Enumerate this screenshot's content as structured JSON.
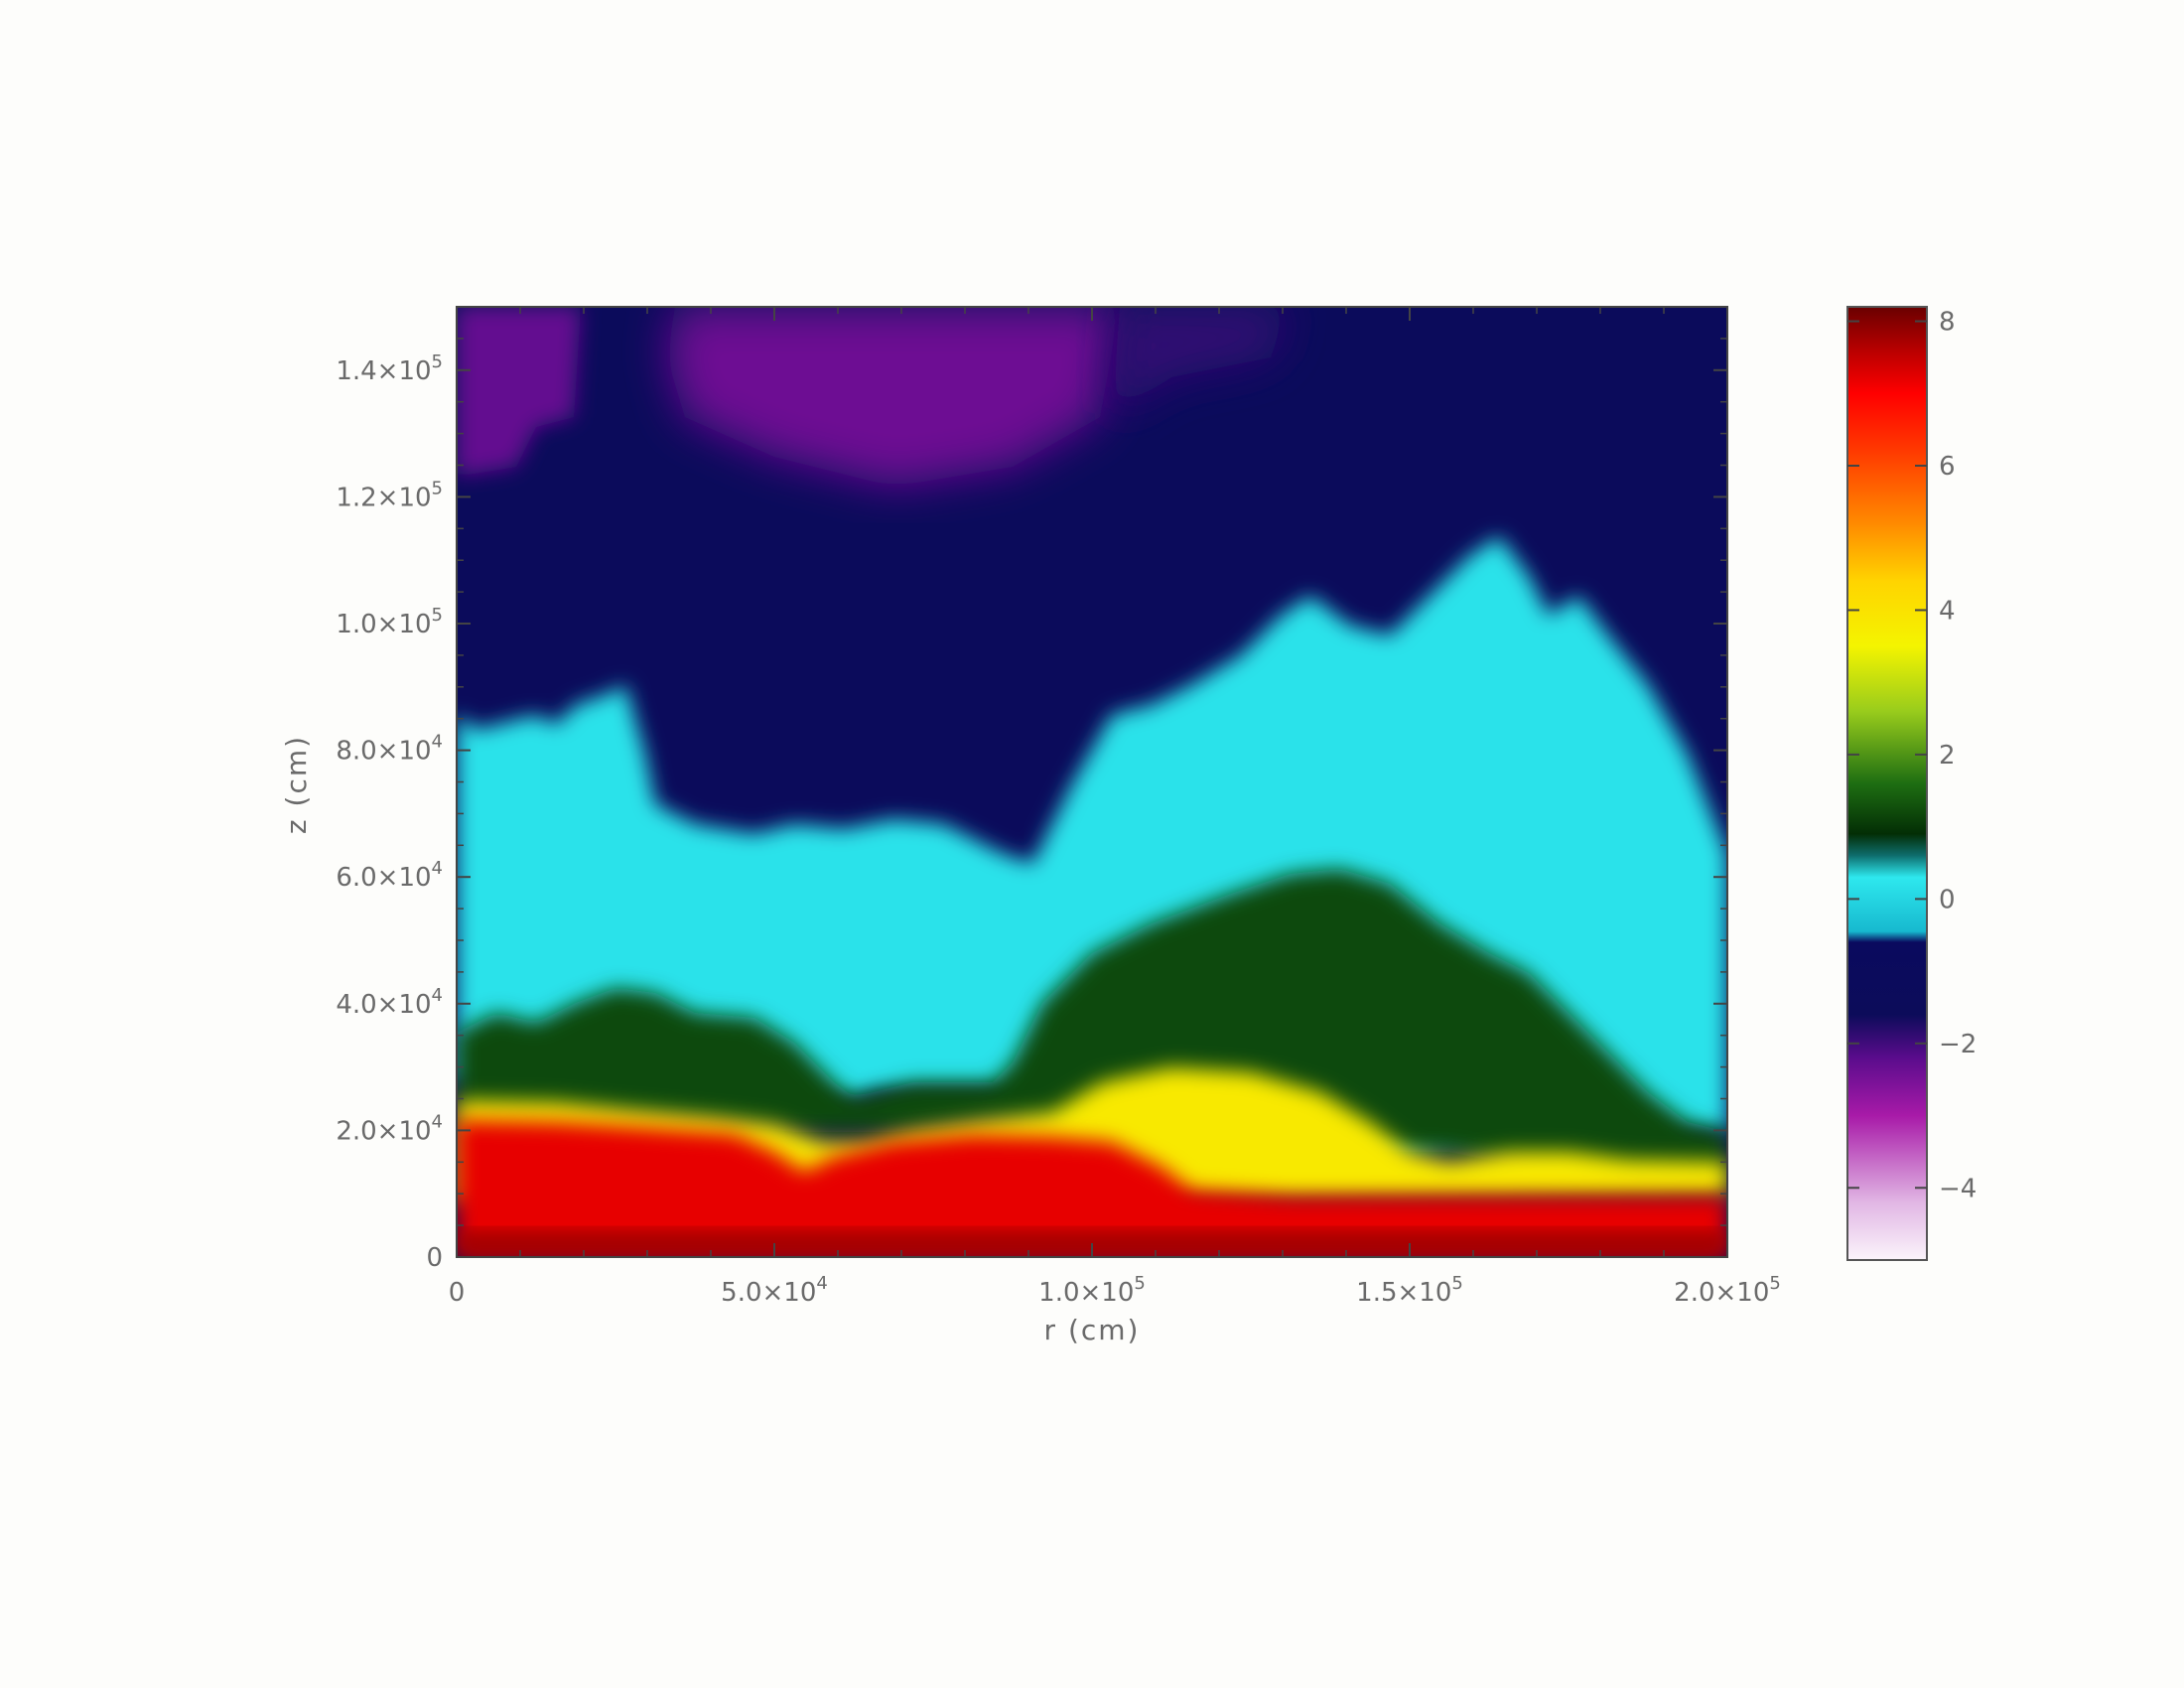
{
  "chart_data": {
    "type": "heatmap",
    "title": "",
    "xlabel": "r (cm)",
    "ylabel": "z (cm)",
    "xlim": [
      0,
      200000
    ],
    "ylim": [
      0,
      150000
    ],
    "x_ticks": [
      {
        "value": 0,
        "mantissa": "0",
        "exp": ""
      },
      {
        "value": 50000,
        "mantissa": "5.0×10",
        "exp": "4"
      },
      {
        "value": 100000,
        "mantissa": "1.0×10",
        "exp": "5"
      },
      {
        "value": 150000,
        "mantissa": "1.5×10",
        "exp": "5"
      },
      {
        "value": 200000,
        "mantissa": "2.0×10",
        "exp": "5"
      }
    ],
    "y_ticks": [
      {
        "value": 0,
        "mantissa": "0",
        "exp": ""
      },
      {
        "value": 20000,
        "mantissa": "2.0×10",
        "exp": "4"
      },
      {
        "value": 40000,
        "mantissa": "4.0×10",
        "exp": "4"
      },
      {
        "value": 60000,
        "mantissa": "6.0×10",
        "exp": "4"
      },
      {
        "value": 80000,
        "mantissa": "8.0×10",
        "exp": "4"
      },
      {
        "value": 100000,
        "mantissa": "1.0×10",
        "exp": "5"
      },
      {
        "value": 120000,
        "mantissa": "1.2×10",
        "exp": "5"
      },
      {
        "value": 140000,
        "mantissa": "1.4×10",
        "exp": "5"
      }
    ],
    "colorbar": {
      "range": [
        -5,
        8.2
      ],
      "ticks": [
        {
          "value": 8,
          "label": "8"
        },
        {
          "value": 6,
          "label": "6"
        },
        {
          "value": 4,
          "label": "4"
        },
        {
          "value": 2,
          "label": "2"
        },
        {
          "value": 0,
          "label": "0"
        },
        {
          "value": -2,
          "label": "−2"
        },
        {
          "value": -4,
          "label": "−4"
        }
      ],
      "stops": [
        {
          "value": -5.0,
          "color": "#fbf4fb"
        },
        {
          "value": -4.2,
          "color": "#e1b6e4"
        },
        {
          "value": -3.0,
          "color": "#a81aa8"
        },
        {
          "value": -2.2,
          "color": "#5a0c8c"
        },
        {
          "value": -1.6,
          "color": "#0c0c5a"
        },
        {
          "value": -0.6,
          "color": "#0a0a5e"
        },
        {
          "value": -0.45,
          "color": "#17b9cf"
        },
        {
          "value": 0.3,
          "color": "#2ee8ee"
        },
        {
          "value": 0.6,
          "color": "#0e6e6e"
        },
        {
          "value": 0.9,
          "color": "#032e05"
        },
        {
          "value": 1.6,
          "color": "#1e6e12"
        },
        {
          "value": 2.6,
          "color": "#99cc1c"
        },
        {
          "value": 3.5,
          "color": "#f4f400"
        },
        {
          "value": 4.4,
          "color": "#ffd400"
        },
        {
          "value": 5.2,
          "color": "#ff8a00"
        },
        {
          "value": 6.2,
          "color": "#ff3a00"
        },
        {
          "value": 7.0,
          "color": "#ff0000"
        },
        {
          "value": 7.6,
          "color": "#b80000"
        },
        {
          "value": 8.2,
          "color": "#6a0000"
        }
      ]
    },
    "field_regions": [
      {
        "name": "upper-left-plume",
        "value": -2.3
      },
      {
        "name": "central-cap",
        "value": -2.4
      },
      {
        "name": "upper-right-plume",
        "value": -1.9
      },
      {
        "name": "ambient",
        "value": -1.3
      },
      {
        "name": "cyan-mixing-layer",
        "value": 0.2
      },
      {
        "name": "green-shell",
        "value": 1.2
      },
      {
        "name": "yellow-front",
        "value": 3.8
      },
      {
        "name": "red-core",
        "value": 7.2
      },
      {
        "name": "bottom-layer",
        "value": 7.8
      }
    ]
  }
}
